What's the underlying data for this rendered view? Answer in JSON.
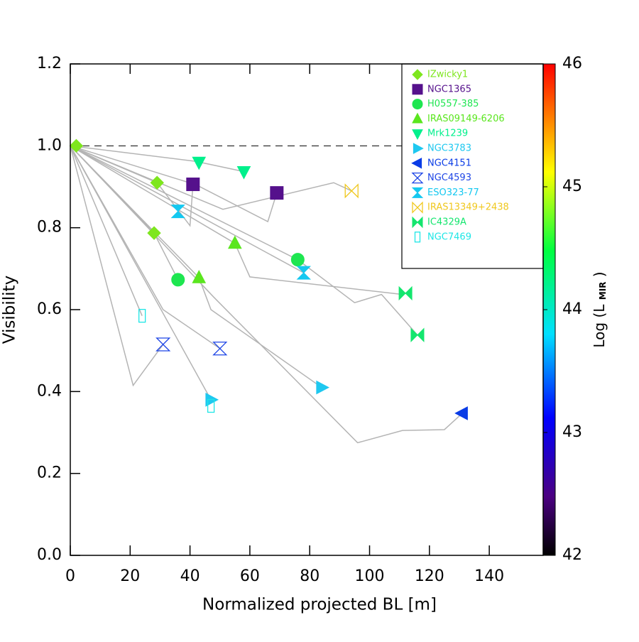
{
  "chart_data": {
    "type": "scatter",
    "x_label": "Normalized projected BL [m]",
    "y_label": "Visibility",
    "xlim": [
      0,
      158
    ],
    "ylim": [
      0,
      1.2
    ],
    "xticks": [
      0,
      20,
      40,
      60,
      80,
      100,
      120,
      140
    ],
    "yticks": [
      {
        "value": 0,
        "label": "0.0"
      },
      0.2,
      0.4,
      0.6,
      0.8,
      {
        "value": 1,
        "label": "1.0"
      },
      1.2
    ],
    "reference_line": 1,
    "track_color": "#b4b4b4",
    "tracks": [
      {
        "x": [
          0,
          42,
          58
        ],
        "values": [
          1,
          0.962,
          0.937
        ]
      },
      {
        "x": [
          0,
          51,
          88,
          94
        ],
        "values": [
          1,
          0.845,
          0.91,
          0.89
        ]
      },
      {
        "x": [
          0,
          42,
          66,
          69
        ],
        "values": [
          1,
          0.905,
          0.815,
          0.885
        ]
      },
      {
        "x": [
          0,
          29,
          40,
          41
        ],
        "values": [
          1,
          0.91,
          0.805,
          0.906
        ]
      },
      {
        "x": [
          0,
          55,
          60,
          111,
          112
        ],
        "values": [
          1,
          0.762,
          0.68,
          0.637,
          0.64
        ]
      },
      {
        "x": [
          0,
          78,
          79
        ],
        "values": [
          1,
          0.69,
          0.7
        ]
      },
      {
        "x": [
          0,
          76,
          95,
          104,
          116
        ],
        "values": [
          1,
          0.722,
          0.617,
          0.637,
          0.538
        ]
      },
      {
        "x": [
          0,
          43,
          47,
          84
        ],
        "values": [
          1,
          0.678,
          0.6,
          0.41
        ]
      },
      {
        "x": [
          0,
          48,
          96,
          111,
          125,
          131
        ],
        "values": [
          1,
          0.63,
          0.275,
          0.305,
          0.307,
          0.347
        ]
      },
      {
        "x": [
          0,
          28,
          36
        ],
        "values": [
          1,
          0.787,
          0.673
        ]
      },
      {
        "x": [
          0,
          31,
          50
        ],
        "values": [
          1,
          0.6,
          0.505
        ]
      },
      {
        "x": [
          0,
          47
        ],
        "values": [
          1,
          0.38
        ]
      },
      {
        "x": [
          0,
          21,
          31
        ],
        "values": [
          1,
          0.415,
          0.515
        ]
      },
      {
        "x": [
          0,
          24
        ],
        "values": [
          1,
          0.585
        ]
      }
    ],
    "series": [
      {
        "name": "IZwicky1",
        "color": "#7ee61e",
        "marker": "diamond",
        "x": [
          2,
          29,
          28
        ],
        "values": [
          1,
          0.91,
          0.787
        ]
      },
      {
        "name": "NGC1365",
        "color": "#55118c",
        "marker": "square",
        "x": [
          41,
          69
        ],
        "values": [
          0.906,
          0.885
        ]
      },
      {
        "name": "H0557-385",
        "color": "#1ee650",
        "marker": "circle",
        "x": [
          36,
          76
        ],
        "values": [
          0.673,
          0.722
        ]
      },
      {
        "name": "IRAS09149-6206",
        "color": "#5ae61e",
        "marker": "triangle-up",
        "x": [
          43,
          55
        ],
        "values": [
          0.678,
          0.762
        ]
      },
      {
        "name": "Mrk1239",
        "color": "#00f08c",
        "marker": "triangle-down",
        "x": [
          43,
          58
        ],
        "values": [
          0.96,
          0.937
        ]
      },
      {
        "name": "NGC3783",
        "color": "#1ec8f0",
        "marker": "triangle-right",
        "x": [
          47,
          84
        ],
        "values": [
          0.38,
          0.41
        ]
      },
      {
        "name": "NGC4151",
        "color": "#0a3ce6",
        "marker": "triangle-left",
        "x": [
          131
        ],
        "values": [
          0.347
        ]
      },
      {
        "name": "NGC4593",
        "color": "#1e46e6",
        "marker": "hourglass-open",
        "x": [
          31,
          50
        ],
        "values": [
          0.515,
          0.505
        ]
      },
      {
        "name": "ESO323-77",
        "color": "#14c8f0",
        "marker": "hourglass",
        "x": [
          36,
          78
        ],
        "values": [
          0.84,
          0.69
        ]
      },
      {
        "name": "IRAS13349+2438",
        "color": "#f0c81e",
        "marker": "bowtie-open",
        "x": [
          94
        ],
        "values": [
          0.89
        ]
      },
      {
        "name": "IC4329A",
        "color": "#14e66e",
        "marker": "bowtie",
        "x": [
          112,
          116
        ],
        "values": [
          0.64,
          0.538
        ]
      },
      {
        "name": "NGC7469",
        "color": "#1ee6e6",
        "marker": "rect-open",
        "x": [
          24,
          47
        ],
        "values": [
          0.585,
          0.365
        ]
      }
    ],
    "colorbar": {
      "label": [
        "Log (L",
        "MIR",
        ")"
      ],
      "lim": [
        42,
        46
      ],
      "ticks": [
        42,
        43,
        44,
        45,
        46
      ]
    }
  }
}
